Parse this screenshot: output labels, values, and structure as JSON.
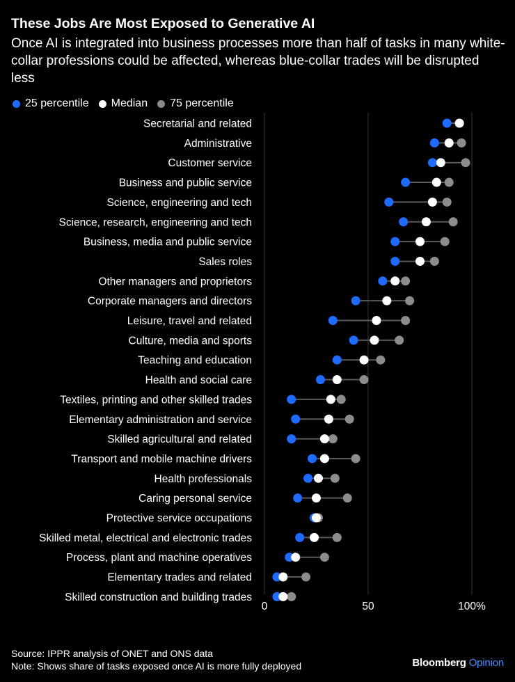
{
  "header": {
    "title": "These Jobs Are Most Exposed to Generative AI",
    "subtitle": "Once AI is integrated into business processes more than half of tasks in many white-collar professions could be affected, whereas blue-collar trades will be disrupted less"
  },
  "legend": {
    "items": [
      {
        "label": "25 percentile",
        "color": "#1f6bff"
      },
      {
        "label": "Median",
        "color": "#ffffff"
      },
      {
        "label": "75 percentile",
        "color": "#8c8c8c"
      }
    ]
  },
  "colors": {
    "background": "#000000",
    "p25": "#1f6bff",
    "median": "#ffffff",
    "p75": "#8c8c8c",
    "connector": "#5a5a5a",
    "brand_accent": "#4d8dff"
  },
  "chart_data": {
    "type": "dot-range",
    "xlim": [
      0,
      100
    ],
    "xticks": [
      {
        "value": 0,
        "label": "0"
      },
      {
        "value": 50,
        "label": "50"
      },
      {
        "value": 100,
        "label": "100%"
      }
    ],
    "grid": "vertical gridlines at ticks",
    "legend_placement": "top-left",
    "series_names": [
      "25 percentile",
      "Median",
      "75 percentile"
    ],
    "categories": [
      "Secretarial and related",
      "Administrative",
      "Customer service",
      "Business and public service",
      "Science, engineering and tech",
      "Science, research, engineering and tech",
      "Business, media and public service",
      "Sales roles",
      "Other managers and proprietors",
      "Corporate managers and directors",
      "Leisure, travel and related",
      "Culture, media and sports",
      "Teaching and education",
      "Health and social care",
      "Textiles, printing and other skilled trades",
      "Elementary administration and service",
      "Skilled agricultural and related",
      "Transport and mobile machine drivers",
      "Health professionals",
      "Caring personal service",
      "Protective service occupations",
      "Skilled metal, electrical and electronic trades",
      "Process, plant and machine operatives",
      "Elementary trades and related",
      "Skilled construction and building trades"
    ],
    "p25": [
      88,
      82,
      81,
      68,
      60,
      67,
      63,
      63,
      57,
      44,
      33,
      43,
      35,
      27,
      13,
      15,
      13,
      23,
      21,
      16,
      24,
      17,
      12,
      6,
      6
    ],
    "median": [
      94,
      89,
      85,
      83,
      81,
      78,
      75,
      75,
      63,
      59,
      54,
      53,
      48,
      35,
      32,
      31,
      29,
      29,
      26,
      25,
      25,
      24,
      15,
      9,
      9
    ],
    "p75": [
      94,
      95,
      97,
      89,
      88,
      91,
      87,
      82,
      68,
      70,
      68,
      65,
      56,
      48,
      37,
      41,
      33,
      44,
      34,
      40,
      26,
      35,
      29,
      20,
      13
    ]
  },
  "footer": {
    "source": "Source: IPPR analysis of ONET and ONS data",
    "note": "Note: Shows share of tasks exposed once AI is more fully deployed",
    "brand_name": "Bloomberg",
    "brand_suffix": "Opinion"
  }
}
